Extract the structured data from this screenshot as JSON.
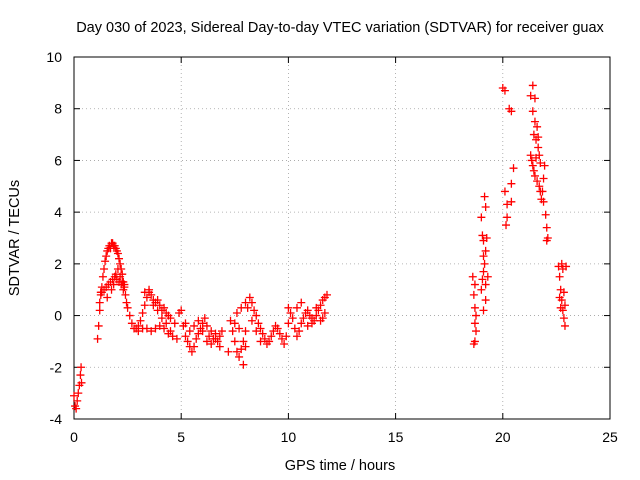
{
  "chart_data": {
    "type": "scatter",
    "title": "Day 030 of 2023, Sidereal Day-to-day VTEC variation (SDTVAR) for receiver guax",
    "xlabel": "GPS time / hours",
    "ylabel": "SDTVAR / TECUs",
    "xlim": [
      0,
      25
    ],
    "ylim": [
      -4,
      10
    ],
    "x_ticks": [
      0,
      5,
      10,
      15,
      20,
      25
    ],
    "y_ticks": [
      -4,
      -2,
      0,
      2,
      4,
      6,
      8,
      10
    ],
    "x_tick_labels": [
      "0",
      "5",
      "10",
      "15",
      "20",
      "25"
    ],
    "y_tick_labels": [
      "-4",
      "-2",
      "0",
      "2",
      "4",
      "6",
      "8",
      "10"
    ],
    "grid": true,
    "marker": "+",
    "series": [
      {
        "name": "SDTVAR",
        "color": "#ff0000",
        "points": [
          [
            0.0,
            -3.1
          ],
          [
            0.05,
            -3.5
          ],
          [
            0.1,
            -3.6
          ],
          [
            0.15,
            -3.3
          ],
          [
            0.2,
            -3.0
          ],
          [
            0.25,
            -2.7
          ],
          [
            0.3,
            -2.3
          ],
          [
            0.33,
            -2.0
          ],
          [
            0.35,
            -2.6
          ],
          [
            1.1,
            -0.9
          ],
          [
            1.15,
            -0.4
          ],
          [
            1.2,
            0.2
          ],
          [
            1.25,
            0.8
          ],
          [
            1.3,
            1.1
          ],
          [
            1.35,
            1.5
          ],
          [
            1.4,
            1.8
          ],
          [
            1.45,
            2.1
          ],
          [
            1.5,
            2.3
          ],
          [
            1.55,
            2.5
          ],
          [
            1.6,
            2.6
          ],
          [
            1.65,
            2.7
          ],
          [
            1.7,
            2.6
          ],
          [
            1.75,
            2.8
          ],
          [
            1.8,
            2.8
          ],
          [
            1.85,
            2.7
          ],
          [
            1.9,
            2.7
          ],
          [
            1.95,
            2.6
          ],
          [
            2.0,
            2.5
          ],
          [
            2.05,
            2.4
          ],
          [
            2.1,
            2.2
          ],
          [
            2.15,
            2.0
          ],
          [
            2.2,
            1.8
          ],
          [
            2.25,
            1.6
          ],
          [
            2.3,
            1.3
          ],
          [
            2.35,
            1.1
          ],
          [
            2.4,
            0.8
          ],
          [
            2.45,
            0.5
          ],
          [
            1.3,
            0.9
          ],
          [
            1.4,
            1.0
          ],
          [
            1.5,
            1.1
          ],
          [
            1.6,
            1.2
          ],
          [
            1.7,
            1.3
          ],
          [
            1.8,
            1.4
          ],
          [
            1.9,
            1.5
          ],
          [
            2.0,
            1.4
          ],
          [
            2.1,
            1.3
          ],
          [
            2.2,
            1.2
          ],
          [
            2.3,
            1.0
          ],
          [
            1.2,
            0.5
          ],
          [
            1.25,
            0.9
          ],
          [
            1.55,
            0.7
          ],
          [
            1.75,
            1.0
          ],
          [
            1.85,
            1.2
          ],
          [
            1.95,
            1.6
          ],
          [
            2.05,
            1.8
          ],
          [
            2.15,
            1.5
          ],
          [
            2.25,
            1.3
          ],
          [
            2.35,
            1.2
          ],
          [
            2.5,
            0.3
          ],
          [
            2.6,
            0.0
          ],
          [
            2.7,
            -0.3
          ],
          [
            2.8,
            -0.5
          ],
          [
            2.9,
            -0.5
          ],
          [
            3.0,
            -0.4
          ],
          [
            3.1,
            -0.2
          ],
          [
            3.2,
            0.1
          ],
          [
            3.3,
            0.4
          ],
          [
            3.4,
            0.7
          ],
          [
            3.5,
            0.9
          ],
          [
            3.6,
            0.8
          ],
          [
            3.7,
            0.6
          ],
          [
            3.8,
            0.5
          ],
          [
            3.9,
            0.6
          ],
          [
            4.0,
            0.4
          ],
          [
            4.1,
            0.2
          ],
          [
            4.2,
            0.3
          ],
          [
            4.3,
            0.1
          ],
          [
            4.4,
            0.0
          ],
          [
            4.5,
            -0.1
          ],
          [
            3.0,
            -0.6
          ],
          [
            3.2,
            -0.5
          ],
          [
            3.4,
            -0.5
          ],
          [
            3.6,
            -0.6
          ],
          [
            3.8,
            -0.5
          ],
          [
            4.0,
            -0.4
          ],
          [
            4.2,
            -0.5
          ],
          [
            4.4,
            -0.7
          ],
          [
            4.6,
            -0.8
          ],
          [
            4.8,
            -0.9
          ],
          [
            3.3,
            0.9
          ],
          [
            3.5,
            1.0
          ],
          [
            3.7,
            0.4
          ],
          [
            3.9,
            0.2
          ],
          [
            4.1,
            -0.1
          ],
          [
            4.3,
            -0.3
          ],
          [
            4.5,
            -0.6
          ],
          [
            4.7,
            -0.3
          ],
          [
            4.9,
            0.1
          ],
          [
            5.0,
            0.2
          ],
          [
            5.1,
            -0.4
          ],
          [
            5.2,
            -0.8
          ],
          [
            5.3,
            -1.0
          ],
          [
            5.4,
            -1.2
          ],
          [
            5.5,
            -1.4
          ],
          [
            5.6,
            -1.2
          ],
          [
            5.7,
            -0.9
          ],
          [
            5.8,
            -0.7
          ],
          [
            5.9,
            -0.5
          ],
          [
            6.0,
            -0.3
          ],
          [
            5.2,
            -0.3
          ],
          [
            5.4,
            -0.6
          ],
          [
            5.6,
            -0.4
          ],
          [
            5.8,
            -0.2
          ],
          [
            6.0,
            -0.6
          ],
          [
            6.1,
            -0.1
          ],
          [
            6.2,
            -0.4
          ],
          [
            6.3,
            -0.8
          ],
          [
            6.4,
            -0.6
          ],
          [
            6.5,
            -0.9
          ],
          [
            6.6,
            -0.7
          ],
          [
            6.7,
            -1.0
          ],
          [
            6.8,
            -0.8
          ],
          [
            6.9,
            -0.6
          ],
          [
            6.2,
            -1.0
          ],
          [
            6.4,
            -1.1
          ],
          [
            6.6,
            -0.9
          ],
          [
            6.8,
            -1.2
          ],
          [
            7.3,
            -0.2
          ],
          [
            7.4,
            -0.6
          ],
          [
            7.5,
            -1.0
          ],
          [
            7.6,
            -1.4
          ],
          [
            7.7,
            -1.6
          ],
          [
            7.8,
            -1.3
          ],
          [
            7.9,
            -1.0
          ],
          [
            8.0,
            -0.6
          ],
          [
            7.5,
            -0.3
          ],
          [
            7.7,
            -0.5
          ],
          [
            7.6,
            0.1
          ],
          [
            7.8,
            0.3
          ],
          [
            8.0,
            0.5
          ],
          [
            8.1,
            0.3
          ],
          [
            8.2,
            0.7
          ],
          [
            8.3,
            0.5
          ],
          [
            8.4,
            0.2
          ],
          [
            8.5,
            0.0
          ],
          [
            8.6,
            -0.3
          ],
          [
            8.7,
            -0.5
          ],
          [
            8.8,
            -0.7
          ],
          [
            8.9,
            -0.9
          ],
          [
            9.0,
            -1.1
          ],
          [
            9.1,
            -1.0
          ],
          [
            9.2,
            -0.8
          ],
          [
            9.3,
            -0.6
          ],
          [
            9.4,
            -0.4
          ],
          [
            9.5,
            -0.5
          ],
          [
            9.6,
            -0.7
          ],
          [
            9.7,
            -0.9
          ],
          [
            9.8,
            -1.1
          ],
          [
            9.9,
            -0.8
          ],
          [
            8.3,
            -0.2
          ],
          [
            8.5,
            -0.6
          ],
          [
            8.7,
            -1.0
          ],
          [
            8.0,
            -1.2
          ],
          [
            7.9,
            -1.9
          ],
          [
            7.2,
            -1.4
          ],
          [
            10.0,
            -0.3
          ],
          [
            10.0,
            0.3
          ],
          [
            10.1,
            0.1
          ],
          [
            10.2,
            -0.1
          ],
          [
            10.3,
            -0.5
          ],
          [
            10.4,
            -0.8
          ],
          [
            10.5,
            -0.6
          ],
          [
            10.6,
            -0.3
          ],
          [
            10.7,
            -0.1
          ],
          [
            10.8,
            0.1
          ],
          [
            10.9,
            0.2
          ],
          [
            11.0,
            0.0
          ],
          [
            11.1,
            -0.1
          ],
          [
            11.2,
            -0.2
          ],
          [
            11.3,
            0.0
          ],
          [
            11.4,
            0.2
          ],
          [
            11.5,
            0.4
          ],
          [
            11.6,
            0.6
          ],
          [
            11.7,
            0.7
          ],
          [
            10.9,
            -0.4
          ],
          [
            11.1,
            -0.3
          ],
          [
            11.3,
            0.3
          ],
          [
            11.5,
            -0.2
          ],
          [
            11.6,
            -0.1
          ],
          [
            11.7,
            0.1
          ],
          [
            11.8,
            0.8
          ],
          [
            10.4,
            0.3
          ],
          [
            10.6,
            0.5
          ],
          [
            18.6,
            1.5
          ],
          [
            18.7,
            1.2
          ],
          [
            18.65,
            0.8
          ],
          [
            18.7,
            0.3
          ],
          [
            18.75,
            0.0
          ],
          [
            18.7,
            -0.3
          ],
          [
            18.75,
            -0.6
          ],
          [
            18.7,
            -1.0
          ],
          [
            18.65,
            -1.1
          ],
          [
            19.0,
            3.8
          ],
          [
            19.05,
            3.1
          ],
          [
            19.1,
            2.9
          ],
          [
            19.15,
            4.6
          ],
          [
            19.2,
            4.2
          ],
          [
            19.0,
            1.0
          ],
          [
            19.05,
            1.4
          ],
          [
            19.1,
            1.7
          ],
          [
            19.15,
            2.0
          ],
          [
            19.2,
            2.5
          ],
          [
            19.25,
            3.0
          ],
          [
            19.1,
            2.3
          ],
          [
            19.2,
            1.2
          ],
          [
            19.3,
            1.5
          ],
          [
            19.2,
            0.6
          ],
          [
            19.1,
            0.2
          ],
          [
            20.0,
            8.8
          ],
          [
            20.1,
            8.7
          ],
          [
            20.3,
            8.0
          ],
          [
            20.4,
            7.9
          ],
          [
            20.1,
            4.8
          ],
          [
            20.2,
            3.8
          ],
          [
            20.15,
            3.5
          ],
          [
            20.2,
            4.3
          ],
          [
            20.4,
            5.1
          ],
          [
            20.5,
            5.7
          ],
          [
            20.4,
            4.4
          ],
          [
            21.3,
            8.5
          ],
          [
            21.4,
            8.9
          ],
          [
            21.5,
            8.4
          ],
          [
            21.4,
            7.9
          ],
          [
            21.5,
            7.5
          ],
          [
            21.6,
            7.3
          ],
          [
            21.45,
            7.0
          ],
          [
            21.55,
            6.8
          ],
          [
            21.65,
            6.5
          ],
          [
            21.7,
            6.2
          ],
          [
            21.3,
            6.2
          ],
          [
            21.35,
            6.0
          ],
          [
            21.4,
            5.8
          ],
          [
            21.45,
            5.6
          ],
          [
            21.5,
            5.4
          ],
          [
            21.6,
            5.2
          ],
          [
            21.7,
            5.0
          ],
          [
            21.75,
            4.8
          ],
          [
            21.8,
            4.5
          ],
          [
            21.85,
            4.8
          ],
          [
            21.9,
            5.3
          ],
          [
            21.95,
            5.8
          ],
          [
            21.9,
            4.4
          ],
          [
            22.0,
            3.9
          ],
          [
            22.05,
            3.4
          ],
          [
            22.1,
            3.0
          ],
          [
            22.05,
            2.9
          ],
          [
            21.65,
            6.9
          ],
          [
            21.55,
            6.1
          ],
          [
            21.75,
            5.9
          ],
          [
            22.6,
            1.9
          ],
          [
            22.65,
            1.5
          ],
          [
            22.7,
            1.0
          ],
          [
            22.75,
            0.6
          ],
          [
            22.8,
            0.2
          ],
          [
            22.85,
            -0.1
          ],
          [
            22.9,
            -0.4
          ],
          [
            22.75,
            2.0
          ],
          [
            22.8,
            1.8
          ],
          [
            22.85,
            0.9
          ],
          [
            22.9,
            0.4
          ],
          [
            22.7,
            0.3
          ],
          [
            22.65,
            0.7
          ],
          [
            22.95,
            1.9
          ]
        ]
      }
    ]
  }
}
